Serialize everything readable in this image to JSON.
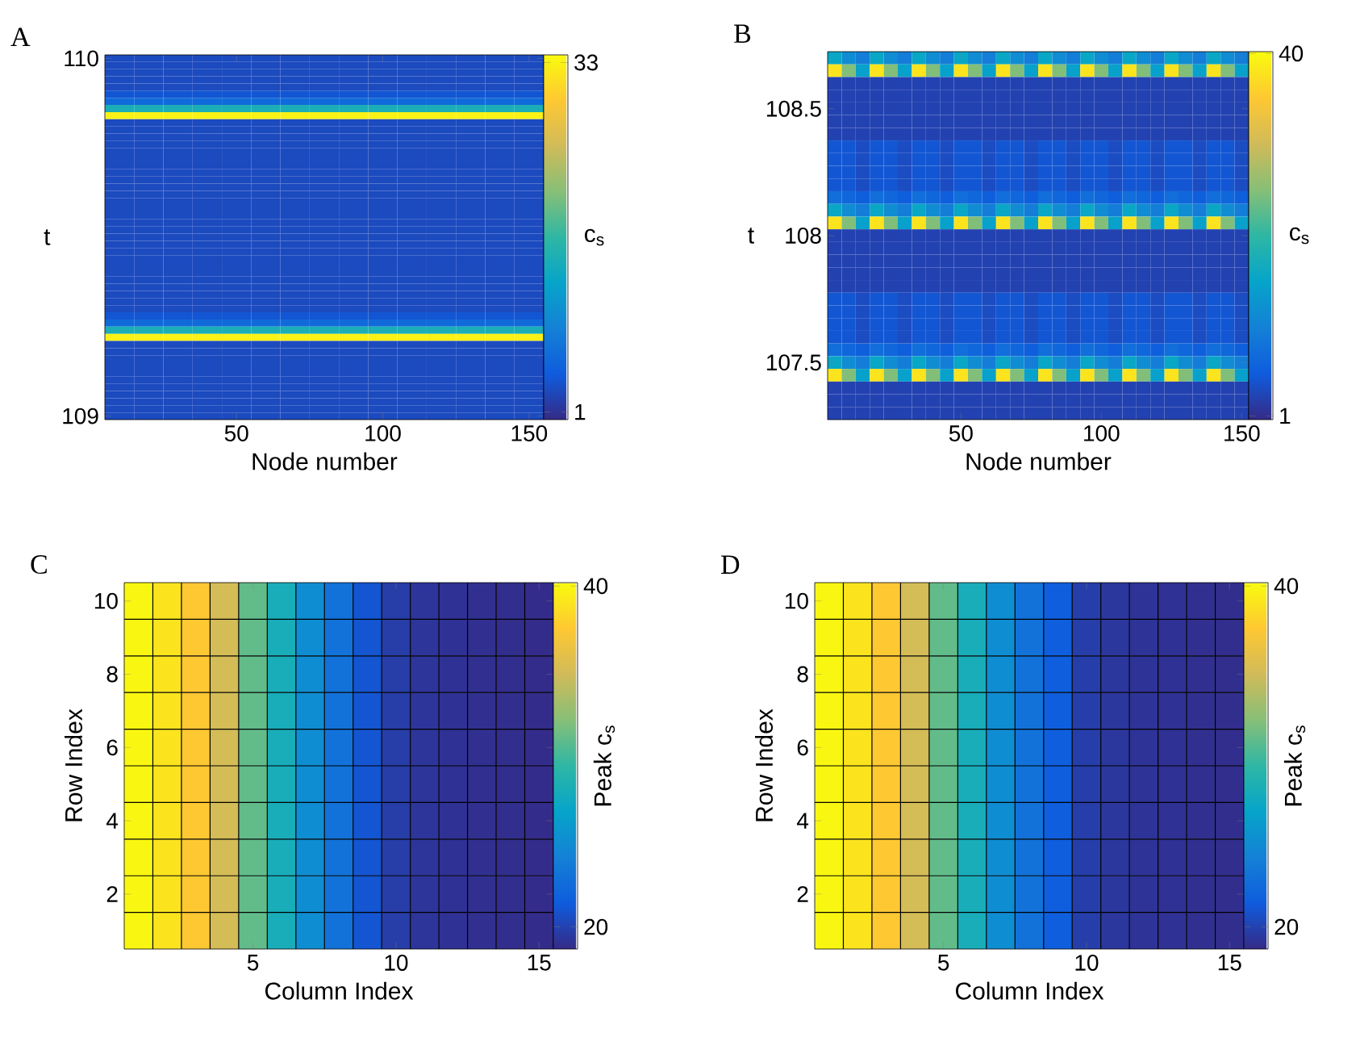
{
  "chart_data": [
    {
      "type": "heatmap",
      "title": "A",
      "xlabel": "Node number",
      "ylabel": "t",
      "clabel": "c$_{s}$",
      "clim": [
        0.3,
        33.7
      ],
      "cticks": [
        1,
        33
      ],
      "categories": [
        null,
        null,
        null,
        null,
        "50",
        null,
        null,
        null,
        null,
        "100",
        null,
        null,
        null,
        null,
        "150"
      ],
      "y_categories": [
        "110",
        null,
        null,
        null,
        null,
        null,
        null,
        null,
        null,
        null,
        null,
        null,
        null,
        null,
        null,
        null,
        null,
        null,
        null,
        null,
        null,
        null,
        null,
        null,
        null,
        null,
        null,
        null,
        null,
        null,
        null,
        null,
        null,
        null,
        null,
        null,
        null,
        null,
        null,
        null,
        null,
        null,
        null,
        null,
        null,
        null,
        null,
        null,
        null,
        null,
        "109"
      ],
      "cells": [
        [
          3,
          3,
          3,
          3,
          3,
          3,
          3,
          3,
          3,
          3,
          3,
          3,
          3,
          3,
          3
        ],
        [
          3,
          3,
          3,
          3,
          3,
          3,
          3,
          3,
          3,
          3,
          3,
          3,
          3,
          3,
          3
        ],
        [
          3,
          3,
          3,
          3,
          3,
          3,
          3,
          3,
          3,
          3,
          3,
          3,
          3,
          3,
          3
        ],
        [
          3,
          3,
          3,
          3,
          3,
          3,
          3,
          3,
          3,
          3,
          3,
          3,
          3,
          3,
          3
        ],
        [
          3,
          3,
          3,
          3,
          3,
          3,
          3,
          3,
          3,
          3,
          3,
          3,
          3,
          3,
          3
        ],
        [
          4,
          4,
          4,
          4,
          4,
          4,
          4,
          4,
          4,
          4,
          4,
          4,
          4,
          4,
          4
        ],
        [
          6,
          6,
          6,
          6,
          6,
          6,
          6,
          6,
          6,
          6,
          6,
          6,
          6,
          6,
          6
        ],
        [
          15,
          15,
          15,
          15,
          15,
          15,
          15,
          15,
          15,
          15,
          15,
          15,
          15,
          15,
          15
        ],
        [
          33,
          33,
          33,
          33,
          33,
          33,
          33,
          33,
          33,
          33,
          33,
          33,
          33,
          33,
          33
        ],
        [
          3,
          3,
          3,
          3,
          3,
          3,
          3,
          3,
          3,
          3,
          3,
          3,
          3,
          3,
          3
        ],
        [
          3,
          3,
          3,
          3,
          3,
          3,
          3,
          3,
          3,
          3,
          3,
          3,
          3,
          3,
          3
        ],
        [
          3,
          3,
          3,
          3,
          3,
          3,
          3,
          3,
          3,
          3,
          3,
          3,
          3,
          3,
          3
        ],
        [
          3,
          3,
          3,
          3,
          3,
          3,
          3,
          3,
          3,
          3,
          3,
          3,
          3,
          3,
          3
        ],
        [
          3,
          3,
          3,
          3,
          3,
          3,
          3,
          3,
          3,
          3,
          3,
          3,
          3,
          3,
          3
        ],
        [
          3,
          3,
          3,
          3,
          3,
          3,
          3,
          3,
          3,
          3,
          3,
          3,
          3,
          3,
          3
        ],
        [
          3,
          3,
          3,
          3,
          3,
          3,
          3,
          3,
          3,
          3,
          3,
          3,
          3,
          3,
          3
        ],
        [
          3,
          3,
          3,
          3,
          3,
          3,
          3,
          3,
          3,
          3,
          3,
          3,
          3,
          3,
          3
        ],
        [
          3,
          3,
          3,
          3,
          3,
          3,
          3,
          3,
          3,
          3,
          3,
          3,
          3,
          3,
          3
        ],
        [
          3,
          3,
          3,
          3,
          3,
          3,
          3,
          3,
          3,
          3,
          3,
          3,
          3,
          3,
          3
        ],
        [
          3,
          3,
          3,
          3,
          3,
          3,
          3,
          3,
          3,
          3,
          3,
          3,
          3,
          3,
          3
        ],
        [
          3,
          3,
          3,
          3,
          3,
          3,
          3,
          3,
          3,
          3,
          3,
          3,
          3,
          3,
          3
        ],
        [
          3,
          3,
          3,
          3,
          3,
          3,
          3,
          3,
          3,
          3,
          3,
          3,
          3,
          3,
          3
        ],
        [
          3,
          3,
          3,
          3,
          3,
          3,
          3,
          3,
          3,
          3,
          3,
          3,
          3,
          3,
          3
        ],
        [
          3,
          3,
          3,
          3,
          3,
          3,
          3,
          3,
          3,
          3,
          3,
          3,
          3,
          3,
          3
        ],
        [
          3,
          3,
          3,
          3,
          3,
          3,
          3,
          3,
          3,
          3,
          3,
          3,
          3,
          3,
          3
        ],
        [
          3,
          3,
          3,
          3,
          3,
          3,
          3,
          3,
          3,
          3,
          3,
          3,
          3,
          3,
          3
        ],
        [
          3,
          3,
          3,
          3,
          3,
          3,
          3,
          3,
          3,
          3,
          3,
          3,
          3,
          3,
          3
        ],
        [
          3,
          3,
          3,
          3,
          3,
          3,
          3,
          3,
          3,
          3,
          3,
          3,
          3,
          3,
          3
        ],
        [
          3,
          3,
          3,
          3,
          3,
          3,
          3,
          3,
          3,
          3,
          3,
          3,
          3,
          3,
          3
        ],
        [
          3,
          3,
          3,
          3,
          3,
          3,
          3,
          3,
          3,
          3,
          3,
          3,
          3,
          3,
          3
        ],
        [
          3,
          3,
          3,
          3,
          3,
          3,
          3,
          3,
          3,
          3,
          3,
          3,
          3,
          3,
          3
        ],
        [
          3,
          3,
          3,
          3,
          3,
          3,
          3,
          3,
          3,
          3,
          3,
          3,
          3,
          3,
          3
        ],
        [
          3,
          3,
          3,
          3,
          3,
          3,
          3,
          3,
          3,
          3,
          3,
          3,
          3,
          3,
          3
        ],
        [
          3,
          3,
          3,
          3,
          3,
          3,
          3,
          3,
          3,
          3,
          3,
          3,
          3,
          3,
          3
        ],
        [
          3,
          3,
          3,
          3,
          3,
          3,
          3,
          3,
          3,
          3,
          3,
          3,
          3,
          3,
          3
        ],
        [
          3,
          3,
          3,
          3,
          3,
          3,
          3,
          3,
          3,
          3,
          3,
          3,
          3,
          3,
          3
        ],
        [
          4,
          4,
          4,
          4,
          4,
          4,
          4,
          4,
          4,
          4,
          4,
          4,
          4,
          4,
          4
        ],
        [
          6,
          6,
          6,
          6,
          6,
          6,
          6,
          6,
          6,
          6,
          6,
          6,
          6,
          6,
          6
        ],
        [
          15,
          15,
          15,
          15,
          15,
          15,
          15,
          15,
          15,
          15,
          15,
          15,
          15,
          15,
          15
        ],
        [
          33,
          33,
          33,
          33,
          33,
          33,
          33,
          33,
          33,
          33,
          33,
          33,
          33,
          33,
          33
        ],
        [
          3,
          3,
          3,
          3,
          3,
          3,
          3,
          3,
          3,
          3,
          3,
          3,
          3,
          3,
          3
        ],
        [
          3,
          3,
          3,
          3,
          3,
          3,
          3,
          3,
          3,
          3,
          3,
          3,
          3,
          3,
          3
        ],
        [
          3,
          3,
          3,
          3,
          3,
          3,
          3,
          3,
          3,
          3,
          3,
          3,
          3,
          3,
          3
        ],
        [
          3,
          3,
          3,
          3,
          3,
          3,
          3,
          3,
          3,
          3,
          3,
          3,
          3,
          3,
          3
        ],
        [
          3,
          3,
          3,
          3,
          3,
          3,
          3,
          3,
          3,
          3,
          3,
          3,
          3,
          3,
          3
        ],
        [
          3,
          3,
          3,
          3,
          3,
          3,
          3,
          3,
          3,
          3,
          3,
          3,
          3,
          3,
          3
        ],
        [
          3,
          3,
          3,
          3,
          3,
          3,
          3,
          3,
          3,
          3,
          3,
          3,
          3,
          3,
          3
        ],
        [
          3,
          3,
          3,
          3,
          3,
          3,
          3,
          3,
          3,
          3,
          3,
          3,
          3,
          3,
          3
        ],
        [
          3,
          3,
          3,
          3,
          3,
          3,
          3,
          3,
          3,
          3,
          3,
          3,
          3,
          3,
          3
        ],
        [
          3,
          3,
          3,
          3,
          3,
          3,
          3,
          3,
          3,
          3,
          3,
          3,
          3,
          3,
          3
        ],
        [
          3,
          3,
          3,
          3,
          3,
          3,
          3,
          3,
          3,
          3,
          3,
          3,
          3,
          3,
          3
        ]
      ]
    },
    {
      "type": "heatmap",
      "title": "B",
      "xlabel": "Node number",
      "ylabel": "t",
      "clabel": "c$_{s}$",
      "clim": [
        0.6,
        40.2
      ],
      "cticks": [
        1,
        40
      ],
      "categories": [
        null,
        null,
        null,
        null,
        null,
        null,
        null,
        null,
        null,
        "50",
        null,
        null,
        null,
        null,
        null,
        null,
        null,
        null,
        null,
        "100",
        null,
        null,
        null,
        null,
        null,
        null,
        null,
        null,
        null,
        "150"
      ],
      "y_categories": [
        null,
        null,
        null,
        null,
        "108.5",
        null,
        null,
        null,
        null,
        null,
        null,
        null,
        null,
        null,
        "108",
        null,
        null,
        null,
        null,
        null,
        null,
        null,
        null,
        null,
        "107.5",
        null,
        null,
        null,
        null
      ],
      "cells": [
        [
          16,
          12,
          10,
          16,
          12,
          10,
          16,
          12,
          10,
          16,
          12,
          10,
          16,
          12,
          10,
          16,
          12,
          10,
          16,
          12,
          10,
          16,
          12,
          10,
          16,
          12,
          10,
          16,
          12,
          10
        ],
        [
          38,
          25,
          15,
          38,
          25,
          15,
          38,
          25,
          15,
          38,
          25,
          15,
          38,
          25,
          15,
          38,
          25,
          15,
          38,
          25,
          15,
          38,
          25,
          15,
          38,
          25,
          15,
          38,
          25,
          15
        ],
        [
          3,
          3,
          3,
          3,
          3,
          3,
          3,
          3,
          3,
          3,
          3,
          3,
          3,
          3,
          3,
          3,
          3,
          3,
          3,
          3,
          3,
          3,
          3,
          3,
          3,
          3,
          3,
          3,
          3,
          3
        ],
        [
          3,
          3,
          3,
          3,
          3,
          3,
          3,
          3,
          3,
          3,
          3,
          3,
          3,
          3,
          3,
          3,
          3,
          3,
          3,
          3,
          3,
          3,
          3,
          3,
          3,
          3,
          3,
          3,
          3,
          3
        ],
        [
          3,
          3,
          3,
          3,
          3,
          3,
          3,
          3,
          3,
          3,
          3,
          3,
          3,
          3,
          3,
          3,
          3,
          3,
          3,
          3,
          3,
          3,
          3,
          3,
          3,
          3,
          3,
          3,
          3,
          3
        ],
        [
          3,
          3,
          3,
          3,
          3,
          3,
          3,
          3,
          3,
          3,
          3,
          3,
          3,
          3,
          3,
          3,
          3,
          3,
          3,
          3,
          3,
          3,
          3,
          3,
          3,
          3,
          3,
          3,
          3,
          3
        ],
        [
          3,
          3,
          3,
          3,
          3,
          3,
          3,
          3,
          3,
          3,
          3,
          3,
          3,
          3,
          3,
          3,
          3,
          3,
          3,
          3,
          3,
          3,
          3,
          3,
          3,
          3,
          3,
          3,
          3,
          3
        ],
        [
          5,
          5,
          4,
          5,
          5,
          4,
          5,
          5,
          4,
          5,
          5,
          4,
          5,
          5,
          4,
          5,
          5,
          4,
          5,
          5,
          4,
          5,
          5,
          4,
          5,
          5,
          4,
          5,
          5,
          4
        ],
        [
          5,
          5,
          4,
          5,
          5,
          4,
          5,
          5,
          4,
          5,
          5,
          4,
          5,
          5,
          4,
          5,
          5,
          4,
          5,
          5,
          4,
          5,
          5,
          4,
          5,
          5,
          4,
          5,
          5,
          4
        ],
        [
          5,
          5,
          4,
          5,
          5,
          4,
          5,
          5,
          4,
          5,
          5,
          4,
          5,
          5,
          4,
          5,
          5,
          4,
          5,
          5,
          4,
          5,
          5,
          4,
          5,
          5,
          4,
          5,
          5,
          4
        ],
        [
          5,
          5,
          4,
          5,
          5,
          4,
          5,
          5,
          4,
          5,
          5,
          4,
          5,
          5,
          4,
          5,
          5,
          4,
          5,
          5,
          4,
          5,
          5,
          4,
          5,
          5,
          4,
          5,
          5,
          4
        ],
        [
          8,
          7,
          6,
          8,
          7,
          6,
          8,
          7,
          6,
          8,
          7,
          6,
          8,
          7,
          6,
          8,
          7,
          6,
          8,
          7,
          6,
          8,
          7,
          6,
          8,
          7,
          6,
          8,
          7,
          6
        ],
        [
          16,
          12,
          10,
          16,
          12,
          10,
          16,
          12,
          10,
          16,
          12,
          10,
          16,
          12,
          10,
          16,
          12,
          10,
          16,
          12,
          10,
          16,
          12,
          10,
          16,
          12,
          10,
          16,
          12,
          10
        ],
        [
          38,
          25,
          15,
          38,
          25,
          15,
          38,
          25,
          15,
          38,
          25,
          15,
          38,
          25,
          15,
          38,
          25,
          15,
          38,
          25,
          15,
          38,
          25,
          15,
          38,
          25,
          15,
          38,
          25,
          15
        ],
        [
          3,
          3,
          3,
          3,
          3,
          3,
          3,
          3,
          3,
          3,
          3,
          3,
          3,
          3,
          3,
          3,
          3,
          3,
          3,
          3,
          3,
          3,
          3,
          3,
          3,
          3,
          3,
          3,
          3,
          3
        ],
        [
          3,
          3,
          3,
          3,
          3,
          3,
          3,
          3,
          3,
          3,
          3,
          3,
          3,
          3,
          3,
          3,
          3,
          3,
          3,
          3,
          3,
          3,
          3,
          3,
          3,
          3,
          3,
          3,
          3,
          3
        ],
        [
          3,
          3,
          3,
          3,
          3,
          3,
          3,
          3,
          3,
          3,
          3,
          3,
          3,
          3,
          3,
          3,
          3,
          3,
          3,
          3,
          3,
          3,
          3,
          3,
          3,
          3,
          3,
          3,
          3,
          3
        ],
        [
          3,
          3,
          3,
          3,
          3,
          3,
          3,
          3,
          3,
          3,
          3,
          3,
          3,
          3,
          3,
          3,
          3,
          3,
          3,
          3,
          3,
          3,
          3,
          3,
          3,
          3,
          3,
          3,
          3,
          3
        ],
        [
          3,
          3,
          3,
          3,
          3,
          3,
          3,
          3,
          3,
          3,
          3,
          3,
          3,
          3,
          3,
          3,
          3,
          3,
          3,
          3,
          3,
          3,
          3,
          3,
          3,
          3,
          3,
          3,
          3,
          3
        ],
        [
          5,
          5,
          4,
          5,
          5,
          4,
          5,
          5,
          4,
          5,
          5,
          4,
          5,
          5,
          4,
          5,
          5,
          4,
          5,
          5,
          4,
          5,
          5,
          4,
          5,
          5,
          4,
          5,
          5,
          4
        ],
        [
          5,
          5,
          4,
          5,
          5,
          4,
          5,
          5,
          4,
          5,
          5,
          4,
          5,
          5,
          4,
          5,
          5,
          4,
          5,
          5,
          4,
          5,
          5,
          4,
          5,
          5,
          4,
          5,
          5,
          4
        ],
        [
          5,
          5,
          4,
          5,
          5,
          4,
          5,
          5,
          4,
          5,
          5,
          4,
          5,
          5,
          4,
          5,
          5,
          4,
          5,
          5,
          4,
          5,
          5,
          4,
          5,
          5,
          4,
          5,
          5,
          4
        ],
        [
          5,
          5,
          4,
          5,
          5,
          4,
          5,
          5,
          4,
          5,
          5,
          4,
          5,
          5,
          4,
          5,
          5,
          4,
          5,
          5,
          4,
          5,
          5,
          4,
          5,
          5,
          4,
          5,
          5,
          4
        ],
        [
          8,
          7,
          6,
          8,
          7,
          6,
          8,
          7,
          6,
          8,
          7,
          6,
          8,
          7,
          6,
          8,
          7,
          6,
          8,
          7,
          6,
          8,
          7,
          6,
          8,
          7,
          6,
          8,
          7,
          6
        ],
        [
          16,
          12,
          10,
          16,
          12,
          10,
          16,
          12,
          10,
          16,
          12,
          10,
          16,
          12,
          10,
          16,
          12,
          10,
          16,
          12,
          10,
          16,
          12,
          10,
          16,
          12,
          10,
          16,
          12,
          10
        ],
        [
          38,
          25,
          15,
          38,
          25,
          15,
          38,
          25,
          15,
          38,
          25,
          15,
          38,
          25,
          15,
          38,
          25,
          15,
          38,
          25,
          15,
          38,
          25,
          15,
          38,
          25,
          15,
          38,
          25,
          15
        ],
        [
          3,
          3,
          3,
          3,
          3,
          3,
          3,
          3,
          3,
          3,
          3,
          3,
          3,
          3,
          3,
          3,
          3,
          3,
          3,
          3,
          3,
          3,
          3,
          3,
          3,
          3,
          3,
          3,
          3,
          3
        ],
        [
          3,
          3,
          3,
          3,
          3,
          3,
          3,
          3,
          3,
          3,
          3,
          3,
          3,
          3,
          3,
          3,
          3,
          3,
          3,
          3,
          3,
          3,
          3,
          3,
          3,
          3,
          3,
          3,
          3,
          3
        ],
        [
          3,
          3,
          3,
          3,
          3,
          3,
          3,
          3,
          3,
          3,
          3,
          3,
          3,
          3,
          3,
          3,
          3,
          3,
          3,
          3,
          3,
          3,
          3,
          3,
          3,
          3,
          3,
          3,
          3,
          3
        ]
      ]
    },
    {
      "type": "heatmap",
      "title": "C",
      "xlabel": "Column Index",
      "ylabel": "Row Index",
      "clabel": "Peak c$_{s}$",
      "clim": [
        18.7,
        40.2
      ],
      "cticks": [
        20,
        40
      ],
      "grid": true,
      "categories": [
        null,
        null,
        null,
        null,
        "5",
        null,
        null,
        null,
        null,
        "10",
        null,
        null,
        null,
        null,
        "15"
      ],
      "y_categories": [
        "10",
        null,
        "8",
        null,
        "6",
        null,
        "4",
        null,
        "2",
        null
      ],
      "cells": [
        [
          40,
          39,
          37.5,
          35,
          31,
          28,
          25,
          23,
          21,
          19.7,
          19.3,
          19.1,
          19,
          18.9,
          18.8
        ],
        [
          40,
          39,
          37.5,
          35,
          31,
          28,
          25,
          23,
          21,
          19.7,
          19.3,
          19.1,
          19,
          18.9,
          18.8
        ],
        [
          40,
          39,
          37.5,
          35,
          31,
          28,
          25,
          23,
          21,
          19.7,
          19.3,
          19.1,
          19,
          18.9,
          18.8
        ],
        [
          40,
          39,
          37.5,
          35,
          31,
          28,
          25,
          23,
          21,
          19.7,
          19.3,
          19.1,
          19,
          18.9,
          18.8
        ],
        [
          40,
          39,
          37.5,
          35,
          31,
          28,
          25,
          23,
          21,
          19.7,
          19.3,
          19.1,
          19,
          18.9,
          18.8
        ],
        [
          40,
          39,
          37.5,
          35,
          31,
          28,
          25,
          23,
          21,
          19.7,
          19.3,
          19.1,
          19,
          18.9,
          18.8
        ],
        [
          40,
          39,
          37.5,
          35,
          31,
          28,
          25,
          23,
          21,
          19.7,
          19.3,
          19.1,
          19,
          18.9,
          18.8
        ],
        [
          40,
          39,
          37.5,
          35,
          31,
          28,
          25,
          23,
          21,
          19.7,
          19.3,
          19.1,
          19,
          18.9,
          18.8
        ],
        [
          40,
          39,
          37.5,
          35,
          31,
          28,
          25,
          23,
          21,
          19.7,
          19.3,
          19.1,
          19,
          18.9,
          18.8
        ],
        [
          40,
          39,
          37.5,
          35,
          31,
          28,
          25,
          23,
          21,
          19.7,
          19.3,
          19.1,
          19,
          18.9,
          18.8
        ]
      ]
    },
    {
      "type": "heatmap",
      "title": "D",
      "xlabel": "Column Index",
      "ylabel": "Row Index",
      "clabel": "Peak c$_{s}$",
      "clim": [
        18.7,
        40.2
      ],
      "cticks": [
        20,
        40
      ],
      "grid": true,
      "categories": [
        null,
        null,
        null,
        null,
        "5",
        null,
        null,
        null,
        null,
        "10",
        null,
        null,
        null,
        null,
        "15"
      ],
      "y_categories": [
        "10",
        null,
        "8",
        null,
        "6",
        null,
        "4",
        null,
        "2",
        null
      ],
      "cells": [
        [
          40,
          39,
          37.5,
          35,
          31,
          28,
          25,
          23,
          21.5,
          19.8,
          19.4,
          19.2,
          19.1,
          19,
          18.9
        ],
        [
          40,
          39,
          37.5,
          35,
          31,
          28,
          25,
          23,
          21.5,
          19.8,
          19.4,
          19.2,
          19.1,
          19,
          18.9
        ],
        [
          40,
          39,
          37.5,
          35,
          31,
          28,
          25,
          23,
          21.5,
          19.8,
          19.4,
          19.2,
          19.1,
          19,
          18.9
        ],
        [
          40,
          39,
          37.5,
          35,
          31,
          28,
          25,
          23,
          21.5,
          19.8,
          19.4,
          19.2,
          19.1,
          19,
          18.9
        ],
        [
          40,
          39,
          37.5,
          35,
          31,
          28,
          25,
          23,
          21.5,
          19.8,
          19.4,
          19.2,
          19.1,
          19,
          18.9
        ],
        [
          40,
          39,
          37.5,
          35,
          31,
          28,
          25,
          23,
          21.5,
          19.8,
          19.4,
          19.2,
          19.1,
          19,
          18.9
        ],
        [
          40,
          39,
          37.5,
          35,
          31,
          28,
          25,
          23,
          21.5,
          19.8,
          19.4,
          19.2,
          19.1,
          19,
          18.9
        ],
        [
          40,
          39,
          37.5,
          35,
          31,
          28,
          25,
          23,
          21.5,
          19.8,
          19.4,
          19.2,
          19.1,
          19,
          18.9
        ],
        [
          40,
          39,
          37.5,
          35,
          31,
          28,
          25,
          23,
          21.5,
          19.8,
          19.4,
          19.2,
          19.1,
          19,
          18.9
        ],
        [
          40,
          39,
          37.5,
          35,
          31,
          28,
          25,
          23,
          21.5,
          19.8,
          19.4,
          19.2,
          19.1,
          19,
          18.9
        ]
      ]
    }
  ]
}
